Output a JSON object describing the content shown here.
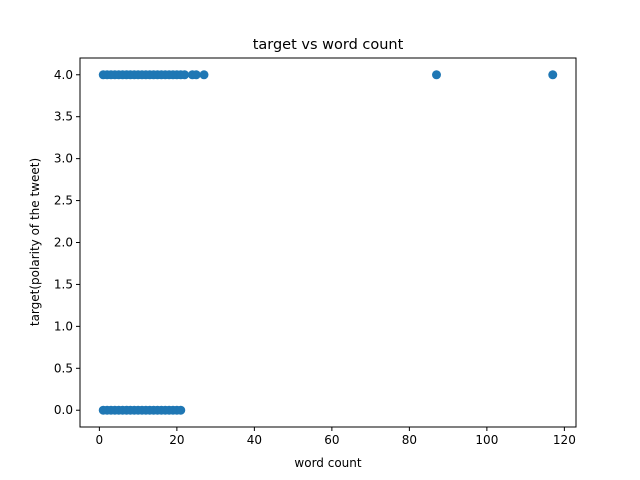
{
  "chart_data": {
    "type": "scatter",
    "title": "target vs word count",
    "xlabel": "word count",
    "ylabel": "target(polarity of the tweet)",
    "xlim": [
      -5,
      123
    ],
    "ylim": [
      -0.2,
      4.2
    ],
    "xticks": [
      0,
      20,
      40,
      60,
      80,
      100,
      120
    ],
    "yticks": [
      0.0,
      0.5,
      1.0,
      1.5,
      2.0,
      2.5,
      3.0,
      3.5,
      4.0
    ],
    "xtick_labels": [
      "0",
      "20",
      "40",
      "60",
      "80",
      "100",
      "120"
    ],
    "ytick_labels": [
      "0.0",
      "0.5",
      "1.0",
      "1.5",
      "2.0",
      "2.5",
      "3.0",
      "3.5",
      "4.0"
    ],
    "grid": false,
    "color": "#1f77b4",
    "series": [
      {
        "points": [
          [
            1,
            0
          ],
          [
            2,
            0
          ],
          [
            3,
            0
          ],
          [
            4,
            0
          ],
          [
            5,
            0
          ],
          [
            6,
            0
          ],
          [
            7,
            0
          ],
          [
            8,
            0
          ],
          [
            9,
            0
          ],
          [
            10,
            0
          ],
          [
            11,
            0
          ],
          [
            12,
            0
          ],
          [
            13,
            0
          ],
          [
            14,
            0
          ],
          [
            15,
            0
          ],
          [
            16,
            0
          ],
          [
            17,
            0
          ],
          [
            18,
            0
          ],
          [
            19,
            0
          ],
          [
            20,
            0
          ],
          [
            21,
            0
          ],
          [
            1,
            4
          ],
          [
            2,
            4
          ],
          [
            3,
            4
          ],
          [
            4,
            4
          ],
          [
            5,
            4
          ],
          [
            6,
            4
          ],
          [
            7,
            4
          ],
          [
            8,
            4
          ],
          [
            9,
            4
          ],
          [
            10,
            4
          ],
          [
            11,
            4
          ],
          [
            12,
            4
          ],
          [
            13,
            4
          ],
          [
            14,
            4
          ],
          [
            15,
            4
          ],
          [
            16,
            4
          ],
          [
            17,
            4
          ],
          [
            18,
            4
          ],
          [
            19,
            4
          ],
          [
            20,
            4
          ],
          [
            21,
            4
          ],
          [
            22,
            4
          ],
          [
            24,
            4
          ],
          [
            25,
            4
          ],
          [
            27,
            4
          ],
          [
            87,
            4
          ],
          [
            117,
            4
          ]
        ]
      }
    ]
  }
}
